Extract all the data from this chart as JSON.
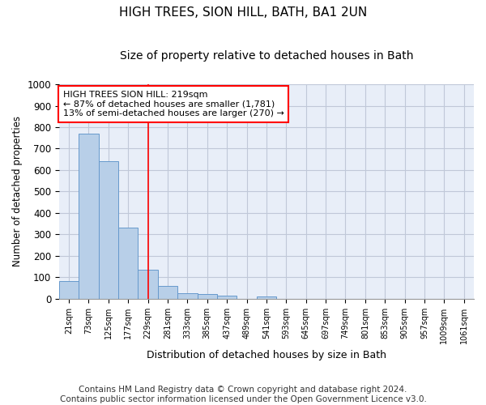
{
  "title": "HIGH TREES, SION HILL, BATH, BA1 2UN",
  "subtitle": "Size of property relative to detached houses in Bath",
  "xlabel": "Distribution of detached houses by size in Bath",
  "ylabel": "Number of detached properties",
  "categories": [
    "21sqm",
    "73sqm",
    "125sqm",
    "177sqm",
    "229sqm",
    "281sqm",
    "333sqm",
    "385sqm",
    "437sqm",
    "489sqm",
    "541sqm",
    "593sqm",
    "645sqm",
    "697sqm",
    "749sqm",
    "801sqm",
    "853sqm",
    "905sqm",
    "957sqm",
    "1009sqm",
    "1061sqm"
  ],
  "bar_heights": [
    83,
    770,
    640,
    330,
    135,
    58,
    25,
    22,
    13,
    0,
    10,
    0,
    0,
    0,
    0,
    0,
    0,
    0,
    0,
    0,
    0
  ],
  "bar_color": "#b8cfe8",
  "bar_edge_color": "#6699cc",
  "background_color": "#e8eef8",
  "grid_color": "#c0c8d8",
  "ylim": [
    0,
    1000
  ],
  "yticks": [
    0,
    100,
    200,
    300,
    400,
    500,
    600,
    700,
    800,
    900,
    1000
  ],
  "vline_x": 4.0,
  "vline_color": "red",
  "annotation_text": "HIGH TREES SION HILL: 219sqm\n← 87% of detached houses are smaller (1,781)\n13% of semi-detached houses are larger (270) →",
  "annotation_box_color": "white",
  "annotation_box_edge_color": "red",
  "footer_line1": "Contains HM Land Registry data © Crown copyright and database right 2024.",
  "footer_line2": "Contains public sector information licensed under the Open Government Licence v3.0.",
  "title_fontsize": 11,
  "subtitle_fontsize": 10,
  "footer_fontsize": 7.5
}
